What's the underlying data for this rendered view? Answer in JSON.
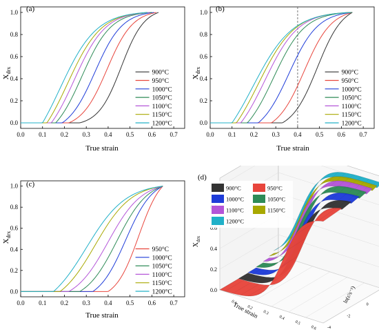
{
  "panels": [
    {
      "id": "a",
      "label": "(a)",
      "xlabel": "True strain",
      "ylabel": "X",
      "ylabel_sub": "drx"
    },
    {
      "id": "b",
      "label": "(b)",
      "xlabel": "True strain",
      "ylabel": "X",
      "ylabel_sub": "drx"
    },
    {
      "id": "c",
      "label": "(c)",
      "xlabel": "True strain",
      "ylabel": "X",
      "ylabel_sub": "drx"
    },
    {
      "id": "d",
      "label": "(d)",
      "xlabel": "True strain",
      "ylabel": "X",
      "ylabel_sub": "drx",
      "zlabel": "ln(ε̇/s⁻¹)"
    }
  ],
  "colors": {
    "900°C": "#333333",
    "950°C": "#e8453c",
    "1000°C": "#1e3cd9",
    "1050°C": "#2e8b57",
    "1100°C": "#b455d8",
    "1150°C": "#a8a800",
    "1200°C": "#20b0c8"
  },
  "chart_data": [
    {
      "panel": "a",
      "type": "line",
      "xlabel": "True strain",
      "ylabel": "Xdrx",
      "xlim": [
        0.0,
        0.75
      ],
      "ylim": [
        -0.05,
        1.05
      ],
      "xticks": [
        0.0,
        0.1,
        0.2,
        0.3,
        0.4,
        0.5,
        0.6,
        0.7
      ],
      "yticks": [
        0.0,
        0.2,
        0.4,
        0.6,
        0.8,
        1.0
      ],
      "legend": "bottom-right",
      "series": [
        {
          "name": "900°C",
          "onset": 0.27,
          "mid": 0.46,
          "end": 0.63,
          "k": 19
        },
        {
          "name": "950°C",
          "onset": 0.22,
          "mid": 0.395,
          "end": 0.62,
          "k": 17
        },
        {
          "name": "1000°C",
          "onset": 0.19,
          "mid": 0.34,
          "end": 0.61,
          "k": 16
        },
        {
          "name": "1050°C",
          "onset": 0.16,
          "mid": 0.28,
          "end": 0.6,
          "k": 15
        },
        {
          "name": "1100°C",
          "onset": 0.14,
          "mid": 0.245,
          "end": 0.59,
          "k": 14
        },
        {
          "name": "1150°C",
          "onset": 0.12,
          "mid": 0.215,
          "end": 0.58,
          "k": 13
        },
        {
          "name": "1200°C",
          "onset": 0.1,
          "mid": 0.18,
          "end": 0.58,
          "k": 12
        }
      ]
    },
    {
      "panel": "b",
      "type": "line",
      "xlabel": "True strain",
      "ylabel": "Xdrx",
      "xlim": [
        0.0,
        0.75
      ],
      "ylim": [
        -0.05,
        1.05
      ],
      "xticks": [
        0.0,
        0.1,
        0.2,
        0.3,
        0.4,
        0.5,
        0.6,
        0.7
      ],
      "yticks": [
        0.0,
        0.2,
        0.4,
        0.6,
        0.8,
        1.0
      ],
      "vline": 0.4,
      "legend": "bottom-right",
      "series": [
        {
          "name": "900°C",
          "onset": 0.33,
          "mid": 0.49,
          "end": 0.65,
          "k": 17
        },
        {
          "name": "950°C",
          "onset": 0.28,
          "mid": 0.43,
          "end": 0.65,
          "k": 16
        },
        {
          "name": "1000°C",
          "onset": 0.22,
          "mid": 0.36,
          "end": 0.65,
          "k": 15
        },
        {
          "name": "1050°C",
          "onset": 0.17,
          "mid": 0.29,
          "end": 0.65,
          "k": 14
        },
        {
          "name": "1100°C",
          "onset": 0.14,
          "mid": 0.25,
          "end": 0.64,
          "k": 13
        },
        {
          "name": "1150°C",
          "onset": 0.12,
          "mid": 0.22,
          "end": 0.64,
          "k": 12
        },
        {
          "name": "1200°C",
          "onset": 0.1,
          "mid": 0.195,
          "end": 0.64,
          "k": 11
        }
      ]
    },
    {
      "panel": "c",
      "type": "line",
      "xlabel": "True strain",
      "ylabel": "Xdrx",
      "xlim": [
        0.0,
        0.75
      ],
      "ylim": [
        -0.05,
        1.05
      ],
      "xticks": [
        0.0,
        0.1,
        0.2,
        0.3,
        0.4,
        0.5,
        0.6,
        0.7
      ],
      "yticks": [
        0.0,
        0.2,
        0.4,
        0.6,
        0.8,
        1.0
      ],
      "legend": "bottom-right",
      "series": [
        {
          "name": "950°C",
          "onset": 0.4,
          "mid": 0.54,
          "end": 0.65,
          "k": 19
        },
        {
          "name": "1000°C",
          "onset": 0.33,
          "mid": 0.48,
          "end": 0.65,
          "k": 16
        },
        {
          "name": "1050°C",
          "onset": 0.27,
          "mid": 0.44,
          "end": 0.65,
          "k": 14
        },
        {
          "name": "1100°C",
          "onset": 0.22,
          "mid": 0.4,
          "end": 0.65,
          "k": 13
        },
        {
          "name": "1150°C",
          "onset": 0.18,
          "mid": 0.34,
          "end": 0.65,
          "k": 12
        },
        {
          "name": "1200°C",
          "onset": 0.15,
          "mid": 0.3,
          "end": 0.65,
          "k": 11
        }
      ]
    },
    {
      "panel": "d",
      "type": "area",
      "xlabel": "True strain",
      "ylabel": "Xdrx",
      "zlabel": "ln(ε̇/s⁻¹)",
      "yticks": [
        0.0,
        0.2,
        0.4,
        0.6,
        0.8,
        1.0
      ],
      "xticks": [
        0.1,
        0.2,
        0.3,
        0.4,
        0.5,
        0.6
      ],
      "zticks": [
        -4,
        -2,
        0,
        2
      ],
      "legend": "top-left",
      "series": [
        "900°C",
        "950°C",
        "1000°C",
        "1050°C",
        "1100°C",
        "1150°C",
        "1200°C"
      ]
    }
  ]
}
